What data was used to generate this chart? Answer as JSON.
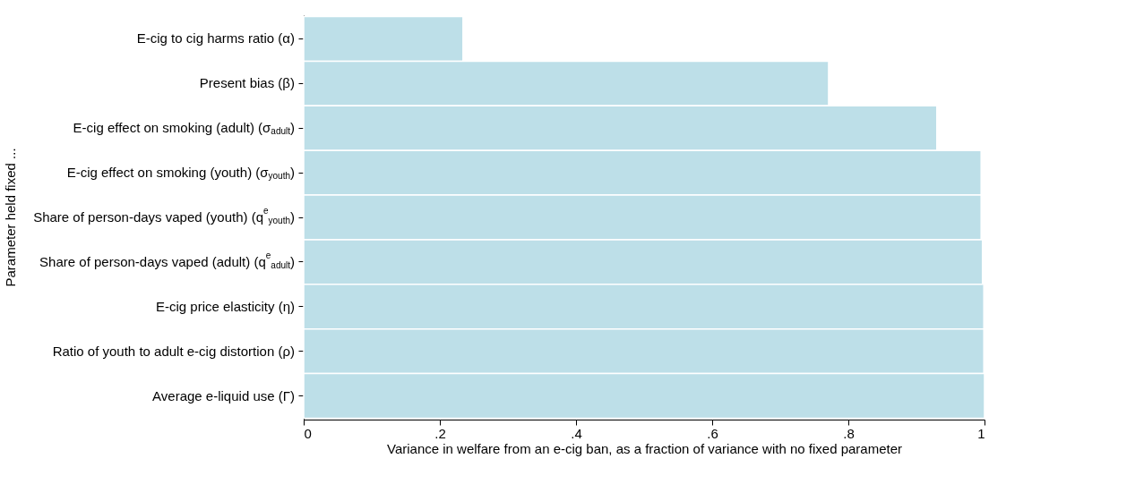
{
  "chart_data": {
    "type": "bar",
    "orientation": "horizontal",
    "xlabel": "Variance in welfare from an e-cig ban, as a fraction of variance with no fixed parameter",
    "ylabel": "Parameter held fixed ...",
    "categories": [
      "E-cig to cig harms ratio (α)",
      "Present bias (β)",
      "E-cig effect on smoking (adult) (σ$_{adult}$)",
      "E-cig effect on smoking (youth) (σ$_{youth}$)",
      "Share of person-days vaped (youth) (q$^{e}$$_{youth}$)",
      "Share of person-days vaped (adult) (q$^{e}$$_{adult}$)",
      "E-cig price elasticity (η)",
      "Ratio of youth to adult e-cig distortion (ρ)",
      "Average e-liquid use (Γ)"
    ],
    "values": [
      0.234,
      0.771,
      0.93,
      0.995,
      0.995,
      0.997,
      0.999,
      0.999,
      1.0
    ],
    "color": "#bddfe8",
    "xlim": [
      0,
      1
    ],
    "xticks": [
      0,
      {
        "value": 0.2,
        "label": ".2"
      },
      {
        "value": 0.4,
        "label": ".4"
      },
      {
        "value": 0.6,
        "label": ".6"
      },
      {
        "value": 0.8,
        "label": ".8"
      },
      1
    ],
    "grid": false
  }
}
